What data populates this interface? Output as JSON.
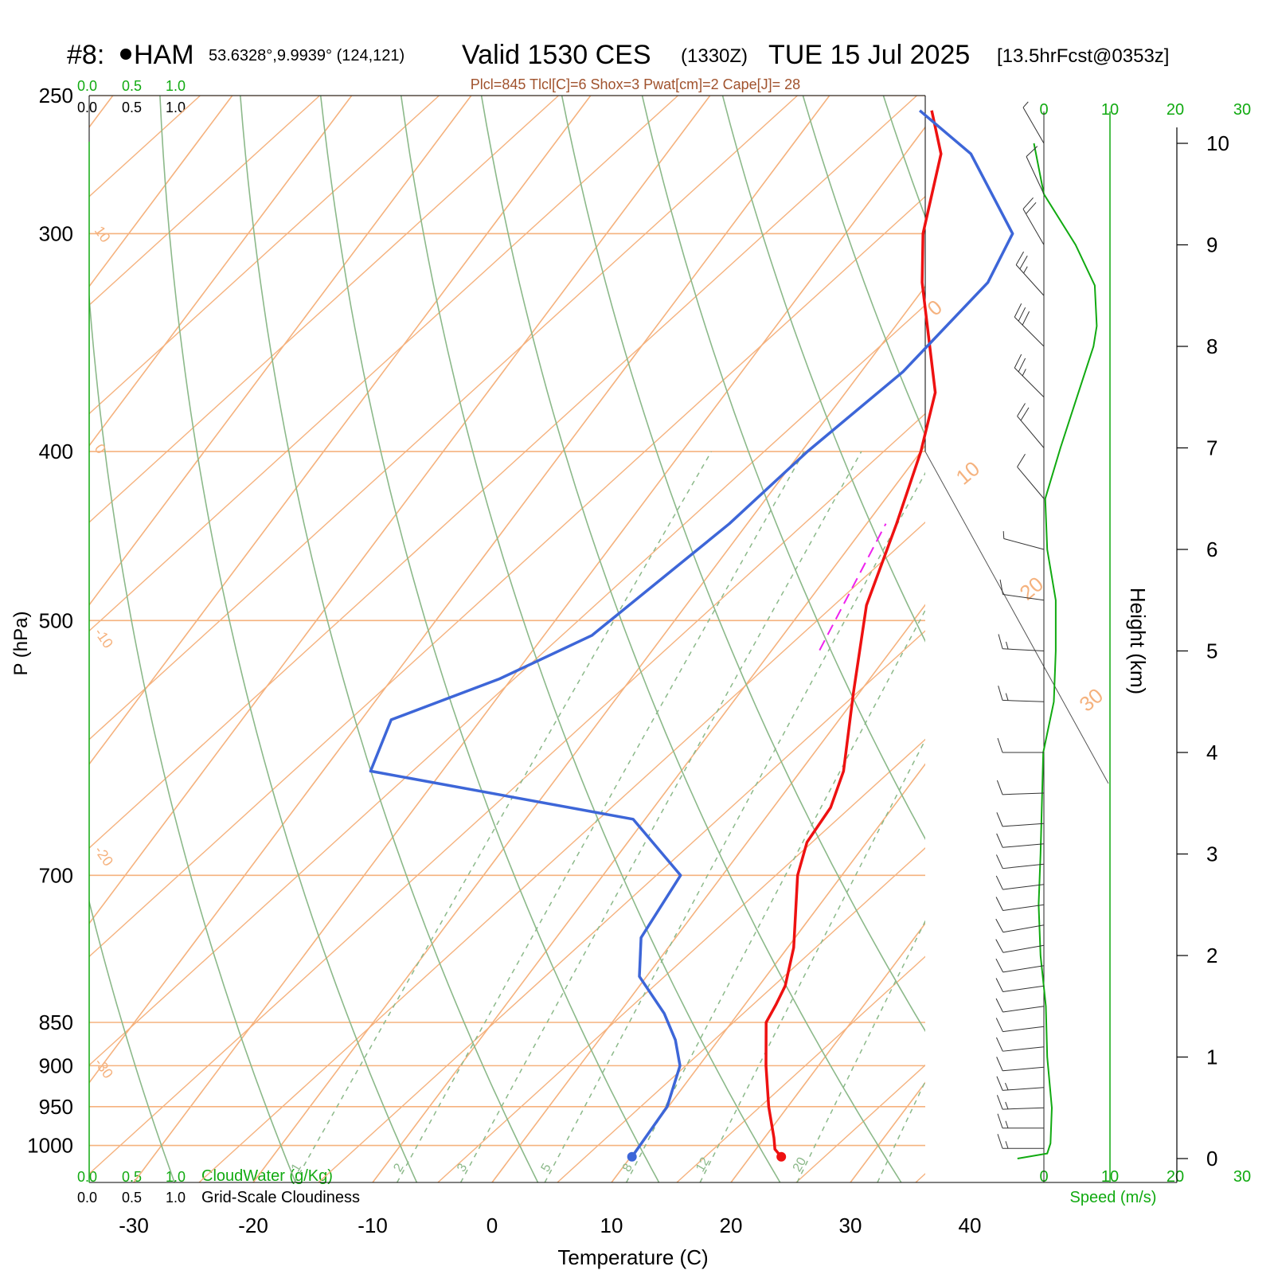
{
  "header": {
    "station_id": "#8:",
    "station_name": "HAM",
    "coords": "53.6328°,9.9939° (124,121)",
    "valid": "Valid 1530 CES",
    "utc": "(1330Z)",
    "date": "TUE 15 Jul 2025",
    "forecast": "[13.5hrFcst@0353z]",
    "indices": "Plcl=845 Tlcl[C]=6 Shox=3 Pwat[cm]=2 Cape[J]= 28"
  },
  "colors": {
    "temperature": "#ee1111",
    "dewpoint": "#3d66d8",
    "isotherm": "#f5b27e",
    "dry_adiabat": "#8cb98a",
    "mixing_ratio": "#8cb98a",
    "parcel": "#ee22ee",
    "scale_green": "#11aa11",
    "indices_text": "#a0522d"
  },
  "left_scale": {
    "cloudwater_ticks": [
      "0.0",
      "0.5",
      "1.0"
    ],
    "cloudiness_ticks": [
      "0.0",
      "0.5",
      "1.0"
    ],
    "cloudwater_label": "CloudWater (g/Kg)",
    "cloudiness_label": "Grid-Scale Cloudiness"
  },
  "speed_scale": {
    "ticks": [
      "0",
      "10",
      "20",
      "30"
    ],
    "label": "Speed (m/s)"
  },
  "chart_data": {
    "type": "line",
    "xlabel": "Temperature (C)",
    "ylabel": "P (hPa)",
    "y2label": "Height (km)",
    "x_ticks": [
      -30,
      -20,
      -10,
      0,
      10,
      20,
      30,
      40
    ],
    "p_ticks": [
      250,
      300,
      400,
      500,
      700,
      850,
      900,
      950,
      1000
    ],
    "height_ticks_km": [
      0,
      1,
      2,
      3,
      4,
      5,
      6,
      7,
      8,
      9,
      10
    ],
    "p_range": [
      250,
      1050
    ],
    "isotherm_labels": [
      {
        "t": 10,
        "text": "10"
      },
      {
        "t": 0,
        "text": "0"
      },
      {
        "t": -10,
        "text": "-10"
      },
      {
        "t": -20,
        "text": "-20"
      },
      {
        "t": -30,
        "text": "-30"
      },
      {
        "t": 0,
        "text": "0"
      },
      {
        "t": 10,
        "text": "10"
      },
      {
        "t": 20,
        "text": "20"
      },
      {
        "t": 30,
        "text": "30"
      }
    ],
    "mixing_ratio_labels": [
      "1",
      "2",
      "3",
      "5",
      "8",
      "12",
      "20"
    ],
    "series": [
      {
        "name": "Temperature",
        "points": [
          {
            "p": 1015,
            "t": 22.6
          },
          {
            "p": 1005,
            "t": 21.6
          },
          {
            "p": 990,
            "t": 20.8
          },
          {
            "p": 950,
            "t": 18.4
          },
          {
            "p": 900,
            "t": 15.6
          },
          {
            "p": 850,
            "t": 12.9
          },
          {
            "p": 830,
            "t": 12.6
          },
          {
            "p": 810,
            "t": 12.2
          },
          {
            "p": 770,
            "t": 10.5
          },
          {
            "p": 700,
            "t": 6.3
          },
          {
            "p": 670,
            "t": 5.0
          },
          {
            "p": 640,
            "t": 4.8
          },
          {
            "p": 610,
            "t": 3.6
          },
          {
            "p": 550,
            "t": -0.5
          },
          {
            "p": 490,
            "t": -4.9
          },
          {
            "p": 440,
            "t": -7.5
          },
          {
            "p": 400,
            "t": -10.0
          },
          {
            "p": 370,
            "t": -12.5
          },
          {
            "p": 320,
            "t": -20.5
          },
          {
            "p": 300,
            "t": -23.5
          },
          {
            "p": 270,
            "t": -27.0
          },
          {
            "p": 255,
            "t": -30.5
          }
        ]
      },
      {
        "name": "Dewpoint",
        "points": [
          {
            "p": 1015,
            "t": 10.1
          },
          {
            "p": 950,
            "t": 9.9
          },
          {
            "p": 900,
            "t": 8.4
          },
          {
            "p": 870,
            "t": 6.4
          },
          {
            "p": 840,
            "t": 3.8
          },
          {
            "p": 800,
            "t": -0.6
          },
          {
            "p": 760,
            "t": -2.9
          },
          {
            "p": 700,
            "t": -3.5
          },
          {
            "p": 650,
            "t": -11.0
          },
          {
            "p": 610,
            "t": -36.0
          },
          {
            "p": 570,
            "t": -37.5
          },
          {
            "p": 540,
            "t": -31.0
          },
          {
            "p": 510,
            "t": -26.0
          },
          {
            "p": 470,
            "t": -23.5
          },
          {
            "p": 440,
            "t": -21.5
          },
          {
            "p": 400,
            "t": -19.5
          },
          {
            "p": 360,
            "t": -16.5
          },
          {
            "p": 320,
            "t": -15.0
          },
          {
            "p": 300,
            "t": -16.0
          },
          {
            "p": 270,
            "t": -24.5
          },
          {
            "p": 255,
            "t": -31.5
          }
        ]
      },
      {
        "name": "Parcel",
        "points": [
          {
            "p": 520,
            "t": -6.0
          },
          {
            "p": 440,
            "t": -8.4
          }
        ]
      },
      {
        "name": "Wind speed",
        "points": [
          {
            "z": 0.0,
            "v": -4.0
          },
          {
            "z": 0.05,
            "v": 0.5
          },
          {
            "z": 0.15,
            "v": 1.0
          },
          {
            "z": 0.5,
            "v": 1.2
          },
          {
            "z": 1.0,
            "v": 0.5
          },
          {
            "z": 1.5,
            "v": 0.3
          },
          {
            "z": 2.0,
            "v": -0.5
          },
          {
            "z": 2.5,
            "v": -0.8
          },
          {
            "z": 3.0,
            "v": -0.5
          },
          {
            "z": 3.5,
            "v": -0.3
          },
          {
            "z": 4.0,
            "v": -0.1
          },
          {
            "z": 4.5,
            "v": 1.5
          },
          {
            "z": 5.0,
            "v": 1.8
          },
          {
            "z": 5.5,
            "v": 1.8
          },
          {
            "z": 6.0,
            "v": 0.5
          },
          {
            "z": 6.5,
            "v": 0.2
          },
          {
            "z": 7.0,
            "v": 2.5
          },
          {
            "z": 7.5,
            "v": 5.0
          },
          {
            "z": 8.0,
            "v": 7.5
          },
          {
            "z": 8.2,
            "v": 8.0
          },
          {
            "z": 8.6,
            "v": 7.7
          },
          {
            "z": 9.0,
            "v": 4.8
          },
          {
            "z": 9.5,
            "v": 0.0
          },
          {
            "z": 10.0,
            "v": -1.5
          }
        ]
      }
    ],
    "wind_barbs": [
      {
        "z": 0.1,
        "dir": 270,
        "kt": 14
      },
      {
        "z": 0.3,
        "dir": 270,
        "kt": 14
      },
      {
        "z": 0.5,
        "dir": 268,
        "kt": 13
      },
      {
        "z": 0.7,
        "dir": 266,
        "kt": 13
      },
      {
        "z": 0.9,
        "dir": 265,
        "kt": 12
      },
      {
        "z": 1.1,
        "dir": 264,
        "kt": 12
      },
      {
        "z": 1.3,
        "dir": 263,
        "kt": 12
      },
      {
        "z": 1.5,
        "dir": 262,
        "kt": 11
      },
      {
        "z": 1.7,
        "dir": 262,
        "kt": 11
      },
      {
        "z": 1.9,
        "dir": 261,
        "kt": 11
      },
      {
        "z": 2.1,
        "dir": 260,
        "kt": 11
      },
      {
        "z": 2.3,
        "dir": 260,
        "kt": 11
      },
      {
        "z": 2.5,
        "dir": 262,
        "kt": 11
      },
      {
        "z": 2.7,
        "dir": 263,
        "kt": 11
      },
      {
        "z": 2.9,
        "dir": 264,
        "kt": 11
      },
      {
        "z": 3.1,
        "dir": 265,
        "kt": 12
      },
      {
        "z": 3.3,
        "dir": 266,
        "kt": 12
      },
      {
        "z": 3.6,
        "dir": 268,
        "kt": 12
      },
      {
        "z": 4.0,
        "dir": 270,
        "kt": 12
      },
      {
        "z": 4.5,
        "dir": 272,
        "kt": 13
      },
      {
        "z": 5.0,
        "dir": 273,
        "kt": 14
      },
      {
        "z": 5.5,
        "dir": 278,
        "kt": 11
      },
      {
        "z": 6.0,
        "dir": 285,
        "kt": 8
      },
      {
        "z": 6.5,
        "dir": 320,
        "kt": 10
      },
      {
        "z": 7.0,
        "dir": 320,
        "kt": 20
      },
      {
        "z": 7.5,
        "dir": 315,
        "kt": 28
      },
      {
        "z": 8.0,
        "dir": 315,
        "kt": 30
      },
      {
        "z": 8.5,
        "dir": 318,
        "kt": 28
      },
      {
        "z": 9.0,
        "dir": 330,
        "kt": 22
      },
      {
        "z": 9.5,
        "dir": 335,
        "kt": 10
      },
      {
        "z": 10.0,
        "dir": 330,
        "kt": 5
      }
    ]
  }
}
